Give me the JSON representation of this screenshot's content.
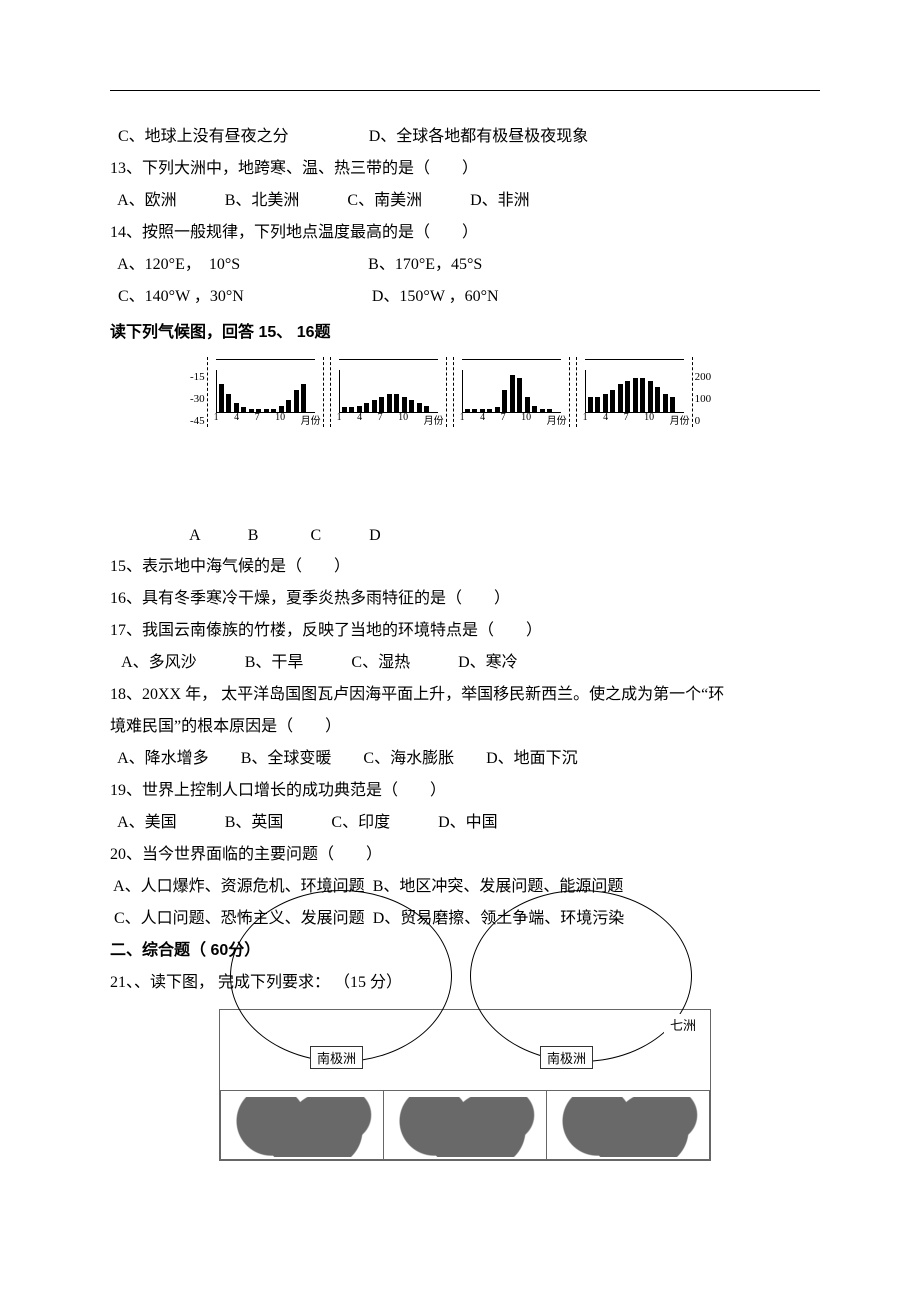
{
  "q12_opts": {
    "c": "C、地球上没有昼夜之分",
    "d": "D、全球各地都有极昼极夜现象"
  },
  "q13": {
    "stem": "13、下列大洲中，地跨寒、温、热三带的是（　　）",
    "a": "A、欧洲",
    "b": "B、北美洲",
    "c": "C、南美洲",
    "d": "D、非洲"
  },
  "q14": {
    "stem": "14、按照一般规律，下列地点温度最高的是（　　）",
    "a": "A、120°E，  10°S",
    "b": "B、170°E，45°S",
    "c": "C、140°W ，30°N",
    "d": "D、150°W ，60°N"
  },
  "chart_intro": "读下列气候图，回答 15、 16题",
  "chart": {
    "y_left": [
      "-15",
      "-30",
      "-45"
    ],
    "y_right": [
      "200",
      "100",
      "0"
    ],
    "xticks": [
      "1",
      "4",
      "7",
      "10",
      "月份"
    ],
    "labels": [
      "A",
      "B",
      "C",
      "D"
    ],
    "panels": {
      "A": [
        18,
        12,
        6,
        3,
        2,
        2,
        2,
        2,
        4,
        8,
        14,
        18
      ],
      "B": [
        3,
        3,
        4,
        6,
        8,
        10,
        12,
        12,
        10,
        8,
        6,
        4
      ],
      "C": [
        2,
        2,
        2,
        2,
        3,
        14,
        24,
        22,
        10,
        4,
        2,
        2
      ],
      "D": [
        10,
        10,
        12,
        14,
        18,
        20,
        22,
        22,
        20,
        16,
        12,
        10
      ]
    }
  },
  "q15": "15、表示地中海气候的是（　　）",
  "q16": "16、具有冬季寒冷干燥，夏季炎热多雨特征的是（　　）",
  "q17": {
    "stem": "17、我国云南傣族的竹楼，反映了当地的环境特点是（　　）",
    "a": "A、多风沙",
    "b": "B、干旱",
    "c": "C、湿热",
    "d": "D、寒冷"
  },
  "q18": {
    "l1": "18、20XX 年， 太平洋岛国图瓦卢因海平面上升，举国移民新西兰。使之成为第一个“环",
    "l2": "境难民国”的根本原因是（　　）",
    "a": "A、降水增多",
    "b": "B、全球变暖",
    "c": "C、海水膨胀",
    "d": "D、地面下沉"
  },
  "q19": {
    "stem": "19、世界上控制人口增长的成功典范是（　　）",
    "a": "A、美国",
    "b": "B、英国",
    "c": "C、印度",
    "d": "D、中国"
  },
  "q20": {
    "stem": "20、当今世界面临的主要问题（　　）",
    "a": "A、人口爆炸、资源危机、环境问题",
    "b": "B、地区冲突、发展问题、能源问题",
    "c": "C、人口问题、恐怖主义、发展问题",
    "d": "D、贸易磨擦、领土争端、环境污染"
  },
  "section2_title": "二、综合题（ 60分）",
  "q21": "21、、读下图， 完成下列要求： （15 分）",
  "map": {
    "corner": "七洲",
    "label_left": "南极洲",
    "label_right": "南极洲"
  }
}
